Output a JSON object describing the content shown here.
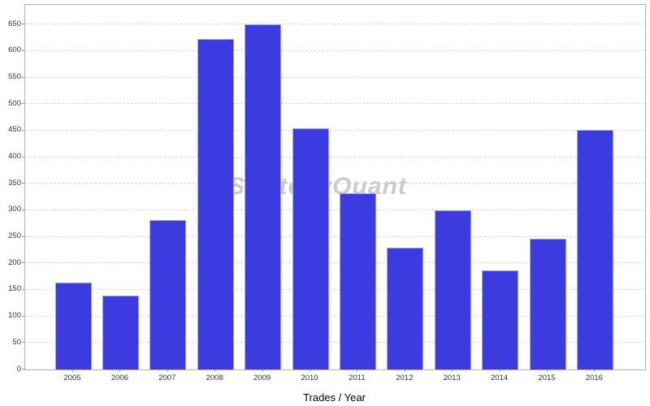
{
  "chart_data": {
    "type": "bar",
    "title": "",
    "xlabel": "Trades / Year",
    "ylabel": "",
    "categories": [
      "2005",
      "2006",
      "2007",
      "2008",
      "2009",
      "2010",
      "2011",
      "2012",
      "2013",
      "2014",
      "2015",
      "2016"
    ],
    "values": [
      163,
      140,
      282,
      622,
      651,
      455,
      332,
      229,
      300,
      186,
      247,
      452
    ],
    "yticks": [
      0,
      50,
      100,
      150,
      200,
      250,
      300,
      350,
      400,
      450,
      500,
      550,
      600,
      650
    ],
    "ylim": [
      0,
      687
    ],
    "grid": "horizontal-dashed",
    "legend": "none",
    "colors": {
      "bar_fill": "#3b3be0",
      "bar_border": "#a2a2e6",
      "grid_line": "#dcdcdc",
      "plot_border": "#b0b0b0",
      "tick_label": "#333333",
      "watermark": "#cbcbcb"
    },
    "watermark": {
      "text": "StrategyQuant"
    }
  }
}
